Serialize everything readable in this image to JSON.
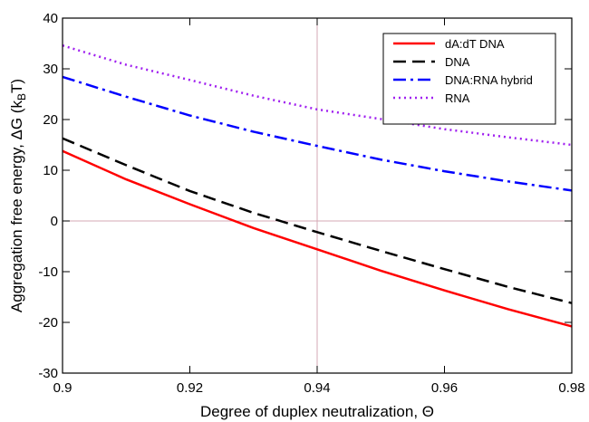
{
  "chart_data": {
    "type": "line",
    "title": "",
    "xlabel": "Degree of duplex neutralization, Θ",
    "ylabel": "Aggregation free energy, ΔG (k",
    "ylabel_sub": "B",
    "ylabel_end": "T)",
    "xlim": [
      0.9,
      0.98
    ],
    "ylim": [
      -30,
      40
    ],
    "xticks": [
      0.9,
      0.92,
      0.94,
      0.96,
      0.98
    ],
    "xtick_labels": [
      "0.9",
      "0.92",
      "0.94",
      "0.96",
      "0.98"
    ],
    "yticks": [
      -30,
      -20,
      -10,
      0,
      10,
      20,
      30,
      40
    ],
    "ytick_labels": [
      "-30",
      "-20",
      "-10",
      "0",
      "10",
      "20",
      "30",
      "40"
    ],
    "grid": false,
    "reference_lines": {
      "x": 0.94,
      "y": 0,
      "color": "#d4a8b4"
    },
    "legend_position": "top-right",
    "x": [
      0.9,
      0.91,
      0.92,
      0.93,
      0.94,
      0.95,
      0.96,
      0.97,
      0.98
    ],
    "series": [
      {
        "name": "dA:dT DNA",
        "color": "#ff0000",
        "dash": "solid",
        "values": [
          13.8,
          8.2,
          3.3,
          -1.4,
          -5.6,
          -9.8,
          -13.7,
          -17.4,
          -20.8
        ]
      },
      {
        "name": "DNA",
        "color": "#000000",
        "dash": "dashed",
        "values": [
          16.3,
          11.0,
          5.9,
          1.6,
          -2.2,
          -5.9,
          -9.5,
          -13.0,
          -16.2
        ]
      },
      {
        "name": "DNA:RNA hybrid",
        "color": "#0000ff",
        "dash": "dashdot",
        "values": [
          28.4,
          24.5,
          20.8,
          17.6,
          14.8,
          12.1,
          9.8,
          7.8,
          6.0
        ]
      },
      {
        "name": "RNA",
        "color": "#a020f0",
        "dash": "dotted",
        "values": [
          34.6,
          30.8,
          27.8,
          24.7,
          22.0,
          20.1,
          18.1,
          16.5,
          15.0
        ]
      }
    ]
  }
}
